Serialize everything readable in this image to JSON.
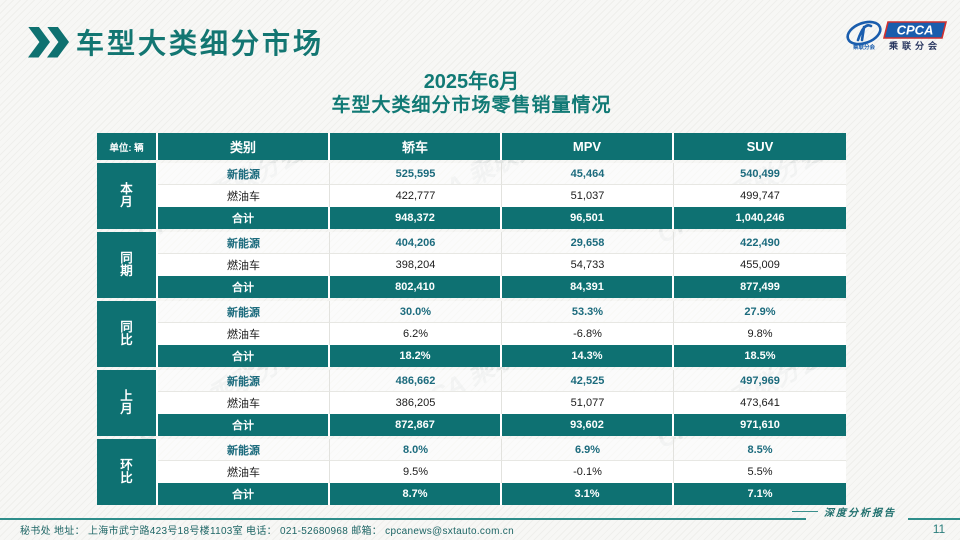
{
  "page": {
    "title": "车型大类细分市场",
    "subtitle_line1": "2025年6月",
    "subtitle_line2": "车型大类细分市场零售销量情况",
    "report_label": "深度分析报告",
    "page_number": "11"
  },
  "logo": {
    "name": "CPCA",
    "subtext": "乘联分会"
  },
  "watermark": "CPCA 乘联分会",
  "footer": {
    "text": "秘书处  地址： 上海市武宁路423号18号楼1103室  电话： 021-52680968   邮箱： cpcanews@sxtauto.com.cn"
  },
  "colors": {
    "teal": "#0e7172",
    "title_teal": "#137672",
    "nev_text": "#1c6b7d",
    "logo_blue": "#1a5dad",
    "logo_red": "#d03030"
  },
  "table": {
    "unit_label": "单位: 辆",
    "columns": [
      "类别",
      "轿车",
      "MPV",
      "SUV"
    ],
    "groups": [
      {
        "label": "本月",
        "rows": [
          {
            "category": "新能源",
            "style": "nev",
            "values": [
              "525,595",
              "45,464",
              "540,499"
            ]
          },
          {
            "category": "燃油车",
            "style": "fuel",
            "values": [
              "422,777",
              "51,037",
              "499,747"
            ]
          },
          {
            "category": "合计",
            "style": "total",
            "values": [
              "948,372",
              "96,501",
              "1,040,246"
            ]
          }
        ]
      },
      {
        "label": "同期",
        "rows": [
          {
            "category": "新能源",
            "style": "nev",
            "values": [
              "404,206",
              "29,658",
              "422,490"
            ]
          },
          {
            "category": "燃油车",
            "style": "fuel",
            "values": [
              "398,204",
              "54,733",
              "455,009"
            ]
          },
          {
            "category": "合计",
            "style": "total",
            "values": [
              "802,410",
              "84,391",
              "877,499"
            ]
          }
        ]
      },
      {
        "label": "同比",
        "rows": [
          {
            "category": "新能源",
            "style": "nev",
            "values": [
              "30.0%",
              "53.3%",
              "27.9%"
            ]
          },
          {
            "category": "燃油车",
            "style": "fuel",
            "values": [
              "6.2%",
              "-6.8%",
              "9.8%"
            ]
          },
          {
            "category": "合计",
            "style": "total",
            "values": [
              "18.2%",
              "14.3%",
              "18.5%"
            ]
          }
        ]
      },
      {
        "label": "上月",
        "rows": [
          {
            "category": "新能源",
            "style": "nev",
            "values": [
              "486,662",
              "42,525",
              "497,969"
            ]
          },
          {
            "category": "燃油车",
            "style": "fuel",
            "values": [
              "386,205",
              "51,077",
              "473,641"
            ]
          },
          {
            "category": "合计",
            "style": "total",
            "values": [
              "872,867",
              "93,602",
              "971,610"
            ]
          }
        ]
      },
      {
        "label": "环比",
        "rows": [
          {
            "category": "新能源",
            "style": "nev",
            "values": [
              "8.0%",
              "6.9%",
              "8.5%"
            ]
          },
          {
            "category": "燃油车",
            "style": "fuel",
            "values": [
              "9.5%",
              "-0.1%",
              "5.5%"
            ]
          },
          {
            "category": "合计",
            "style": "total",
            "values": [
              "8.7%",
              "3.1%",
              "7.1%"
            ]
          }
        ]
      }
    ]
  },
  "chart_data": {
    "type": "table",
    "title": "2025年6月 车型大类细分市场零售销量情况",
    "unit": "辆",
    "columns": [
      "类别",
      "轿车",
      "MPV",
      "SUV"
    ],
    "row_groups": [
      "本月",
      "同期",
      "同比",
      "上月",
      "环比"
    ],
    "rows": [
      [
        "本月",
        "新能源",
        "525,595",
        "45,464",
        "540,499"
      ],
      [
        "本月",
        "燃油车",
        "422,777",
        "51,037",
        "499,747"
      ],
      [
        "本月",
        "合计",
        "948,372",
        "96,501",
        "1,040,246"
      ],
      [
        "同期",
        "新能源",
        "404,206",
        "29,658",
        "422,490"
      ],
      [
        "同期",
        "燃油车",
        "398,204",
        "54,733",
        "455,009"
      ],
      [
        "同期",
        "合计",
        "802,410",
        "84,391",
        "877,499"
      ],
      [
        "同比",
        "新能源",
        "30.0%",
        "53.3%",
        "27.9%"
      ],
      [
        "同比",
        "燃油车",
        "6.2%",
        "-6.8%",
        "9.8%"
      ],
      [
        "同比",
        "合计",
        "18.2%",
        "14.3%",
        "18.5%"
      ],
      [
        "上月",
        "新能源",
        "486,662",
        "42,525",
        "497,969"
      ],
      [
        "上月",
        "燃油车",
        "386,205",
        "51,077",
        "473,641"
      ],
      [
        "上月",
        "合计",
        "872,867",
        "93,602",
        "971,610"
      ],
      [
        "环比",
        "新能源",
        "8.0%",
        "6.9%",
        "8.5%"
      ],
      [
        "环比",
        "燃油车",
        "9.5%",
        "-0.1%",
        "5.5%"
      ],
      [
        "环比",
        "合计",
        "8.7%",
        "3.1%",
        "7.1%"
      ]
    ]
  }
}
